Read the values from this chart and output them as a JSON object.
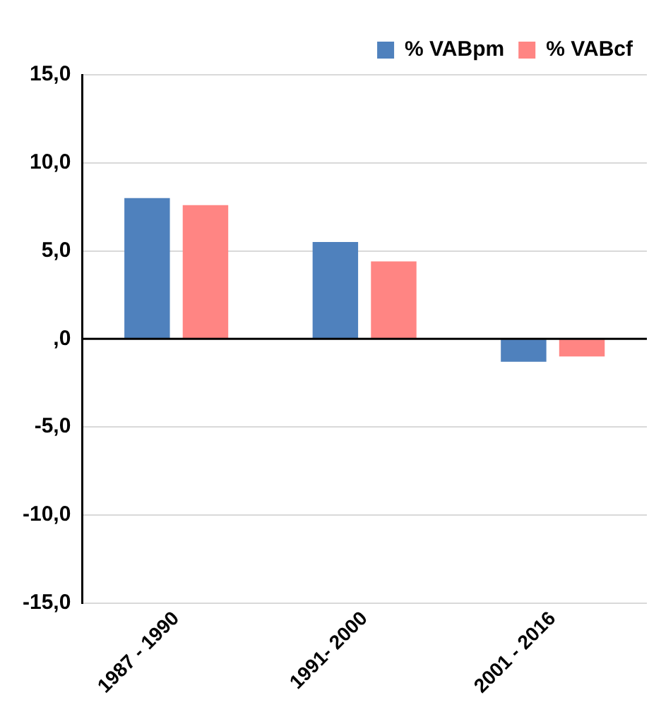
{
  "chart_data": {
    "type": "bar",
    "categories": [
      "1987 - 1990",
      "1991- 2000",
      "2001 - 2016"
    ],
    "series": [
      {
        "name": "% VABpm",
        "color": "#4f81bd",
        "values": [
          8.0,
          5.5,
          -1.3
        ]
      },
      {
        "name": "% VABcf",
        "color": "#ff8583",
        "values": [
          7.6,
          4.4,
          -1.0
        ]
      }
    ],
    "ylim": [
      -15,
      15
    ],
    "yticks": [
      {
        "value": -15,
        "label": "-15,0"
      },
      {
        "value": -10,
        "label": "-10,0"
      },
      {
        "value": -5,
        "label": "-5,0"
      },
      {
        "value": 0,
        "label": ",0"
      },
      {
        "value": 5,
        "label": "5,0"
      },
      {
        "value": 10,
        "label": "10,0"
      },
      {
        "value": 15,
        "label": "15,0"
      }
    ],
    "grid": "y",
    "legend": "top right"
  }
}
